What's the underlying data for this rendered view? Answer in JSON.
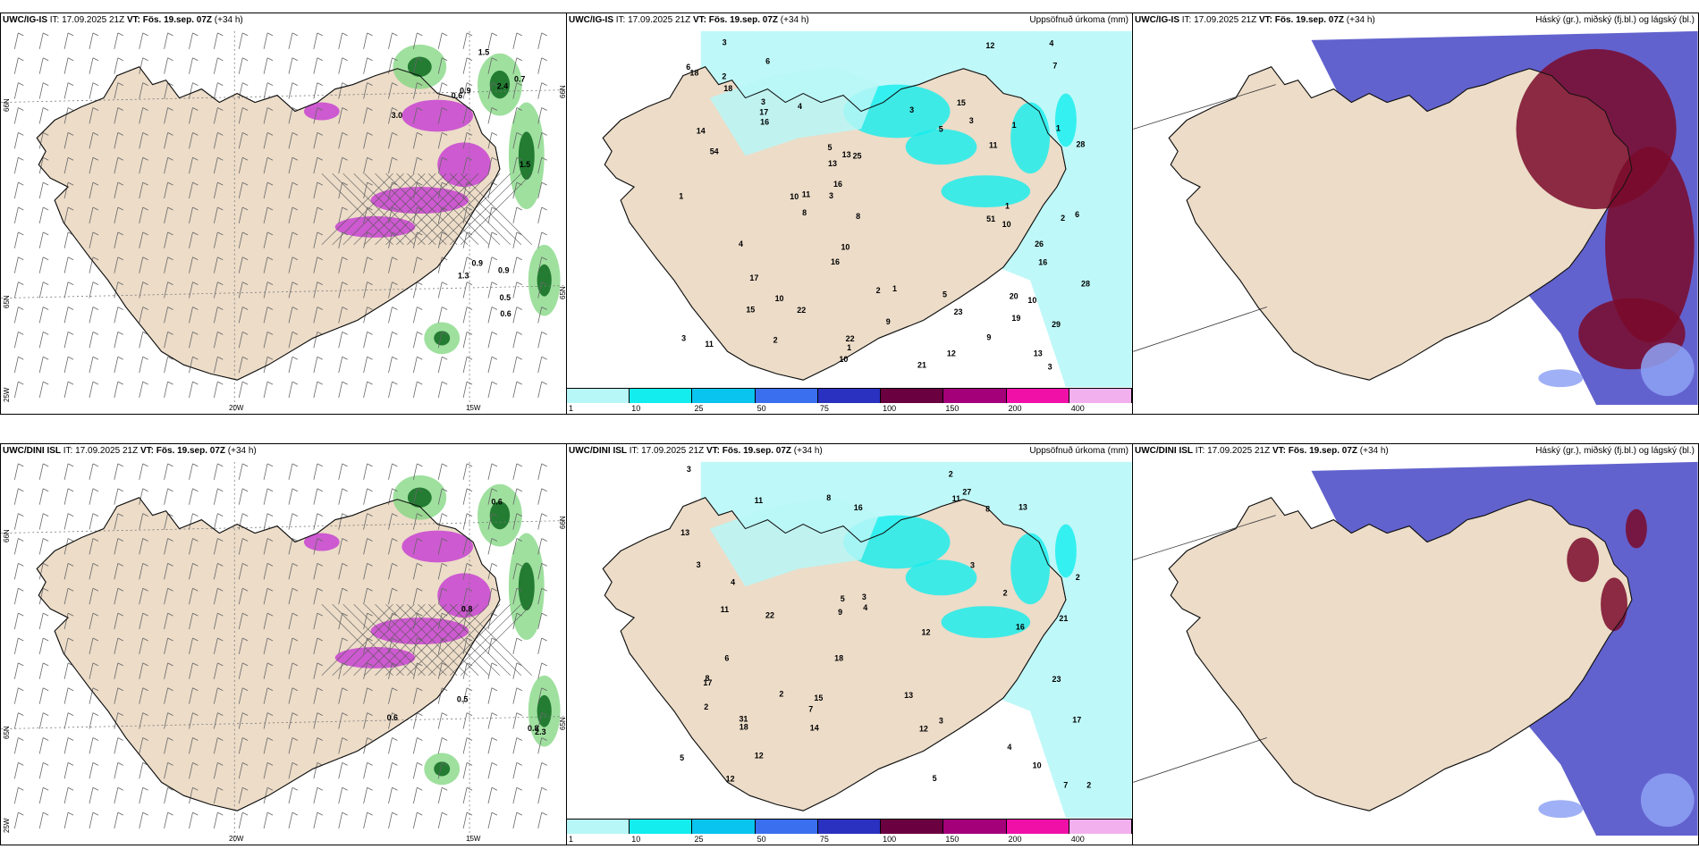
{
  "panels": [
    {
      "id": "p11",
      "model": "UWC/IG-IS",
      "it": "IT: 17.09.2025 21Z",
      "vt_label": "VT:",
      "vt": "Fös. 19.sep. 07Z",
      "lead": "(+34 h)",
      "right": "",
      "variant": "wind",
      "ticks": {
        "bottom": [
          "20W",
          "15W"
        ],
        "left": [
          "66N",
          "65N",
          "25W"
        ],
        "right": [
          "66N",
          "65N"
        ]
      },
      "labels": [
        "0.6",
        "0.7",
        "0.5",
        "0.9",
        "1.5",
        "1.5",
        "3.0",
        "2.4",
        "0.6",
        "0.9",
        "1.3",
        "0.9"
      ]
    },
    {
      "id": "p12",
      "model": "UWC/IG-IS",
      "it": "IT: 17.09.2025 21Z",
      "vt_label": "VT:",
      "vt": "Fös. 19.sep. 07Z",
      "lead": "(+34 h)",
      "right": "Uppsöfnuð úrkoma (mm)",
      "variant": "precip",
      "labels": [
        "12",
        "10",
        "5",
        "3",
        "2",
        "6",
        "3",
        "5",
        "13",
        "19",
        "7",
        "22",
        "21",
        "16",
        "28",
        "20",
        "13",
        "10",
        "10",
        "11",
        "13",
        "16",
        "25",
        "29",
        "16",
        "54",
        "51",
        "15",
        "5",
        "10",
        "14",
        "10",
        "9",
        "4",
        "3",
        "3",
        "2",
        "3",
        "6",
        "15",
        "10",
        "9",
        "8",
        "6",
        "22",
        "17",
        "18",
        "11",
        "16",
        "11",
        "17",
        "12",
        "23",
        "28",
        "26",
        "18",
        "3",
        "4",
        "1",
        "1",
        "1",
        "1",
        "1",
        "1",
        "2",
        "2",
        "3",
        "8",
        "4"
      ]
    },
    {
      "id": "p13",
      "model": "UWC/IG-IS",
      "it": "IT: 17.09.2025 21Z",
      "vt_label": "VT:",
      "vt": "Fös. 19.sep. 07Z",
      "lead": "(+34 h)",
      "right": "Háský (gr.), miðský (fj.bl.) og lágský (bl.)",
      "variant": "cloud"
    },
    {
      "id": "p21",
      "model": "UWC/DINI ISL",
      "it": "IT: 17.09.2025 21Z",
      "vt_label": "VT:",
      "vt": "Fös. 19.sep. 07Z",
      "lead": "(+34 h)",
      "right": "",
      "variant": "wind",
      "ticks": {
        "bottom": [
          "20W",
          "15W"
        ],
        "left": [
          "66N",
          "65N",
          "25W"
        ],
        "right": [
          "66N",
          "65N"
        ]
      },
      "labels": [
        "0.6",
        "0.5",
        "0.6",
        "0.8",
        "0.8",
        "2.3"
      ]
    },
    {
      "id": "p22",
      "model": "UWC/DINI ISL",
      "it": "IT: 17.09.2025 21Z",
      "vt_label": "VT:",
      "vt": "Fös. 19.sep. 07Z",
      "lead": "(+34 h)",
      "right": "Uppsöfnuð úrkoma (mm)",
      "variant": "precip",
      "labels": [
        "2",
        "3",
        "3",
        "5",
        "4",
        "3",
        "21",
        "7",
        "12",
        "12",
        "17",
        "27",
        "16",
        "14",
        "11",
        "17",
        "13",
        "10",
        "15",
        "8",
        "12",
        "7",
        "16",
        "11",
        "31",
        "22",
        "13",
        "9",
        "4",
        "5",
        "2",
        "3",
        "2",
        "18",
        "13",
        "11",
        "8",
        "8",
        "12",
        "23",
        "18",
        "5",
        "2",
        "4",
        "6",
        "2",
        "3",
        "2"
      ]
    },
    {
      "id": "p23",
      "model": "UWC/DINI ISL",
      "it": "IT: 17.09.2025 21Z",
      "vt_label": "VT:",
      "vt": "Fös. 19.sep. 07Z",
      "lead": "(+34 h)",
      "right": "Háský (gr.), miðský (fj.bl.) og lágský (bl.)",
      "variant": "cloud"
    }
  ],
  "colorbar": {
    "ticks": [
      "1",
      "10",
      "25",
      "50",
      "75",
      "100",
      "150",
      "200",
      "400"
    ],
    "colors": [
      "#b8f7f7",
      "#13eded",
      "#09c4ee",
      "#3a6ff0",
      "#2a31c0",
      "#6a0040",
      "#a3007a",
      "#f010a8",
      "#f3b0ee"
    ]
  },
  "colors": {
    "land": "#ecdcc8",
    "sea": "#ffffff",
    "precip_light": "#b8f7f7",
    "precip_mid": "#13eded",
    "wind_green": "#7fd67f",
    "wind_dark": "#0d6a1e",
    "snow": "#c63ad2",
    "cloud_high": "#7a0b2a",
    "cloud_mid": "#4646c6",
    "cloud_low": "#8ea2f5"
  }
}
